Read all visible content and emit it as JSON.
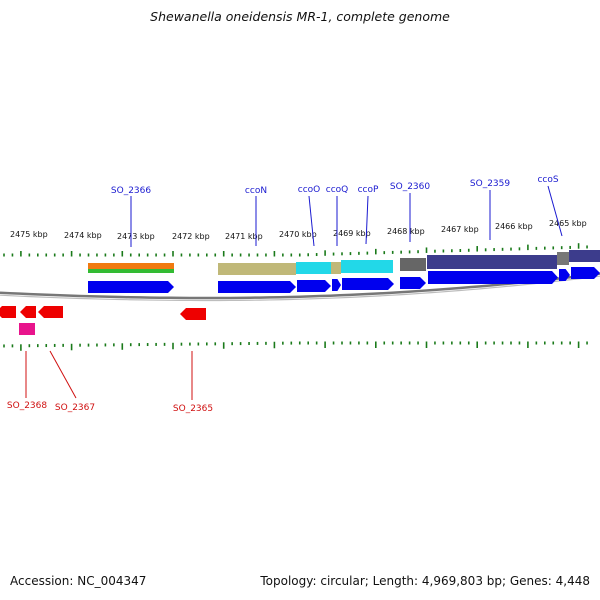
{
  "title": "Shewanella oneidensis MR-1, complete genome",
  "footer": {
    "accession": "Accession: NC_004347",
    "summary": "Topology: circular; Length: 4,969,803 bp; Genes: 4,448"
  },
  "axis": {
    "unit": "kbp",
    "tick_labels": [
      "2475 kbp",
      "2474 kbp",
      "2473 kbp",
      "2472 kbp",
      "2471 kbp",
      "2470 kbp",
      "2469 kbp",
      "2468 kbp",
      "2467 kbp",
      "2466 kbp",
      "2465 kbp"
    ]
  },
  "gene_labels_top": [
    "SO_2366",
    "ccoN",
    "ccoO",
    "ccoQ",
    "ccoP",
    "SO_2360",
    "SO_2359",
    "ccoS"
  ],
  "gene_labels_bottom": [
    "SO_2368",
    "SO_2367",
    "SO_2365"
  ],
  "colors": {
    "forward_gene": "#0000ee",
    "reverse_gene": "#ee0000",
    "backbone": "#8a8a8a",
    "tick": "#1a7a1a",
    "label_top": "#1a1ad0",
    "label_bottom": "#d01010",
    "track_orange": "#f07a10",
    "track_green": "#33bb33",
    "track_khaki": "#c0b878",
    "track_cyan": "#22d8e8",
    "track_gray": "#666666",
    "track_slate": "#3c3c8c",
    "track_magenta": "#e8148c"
  }
}
